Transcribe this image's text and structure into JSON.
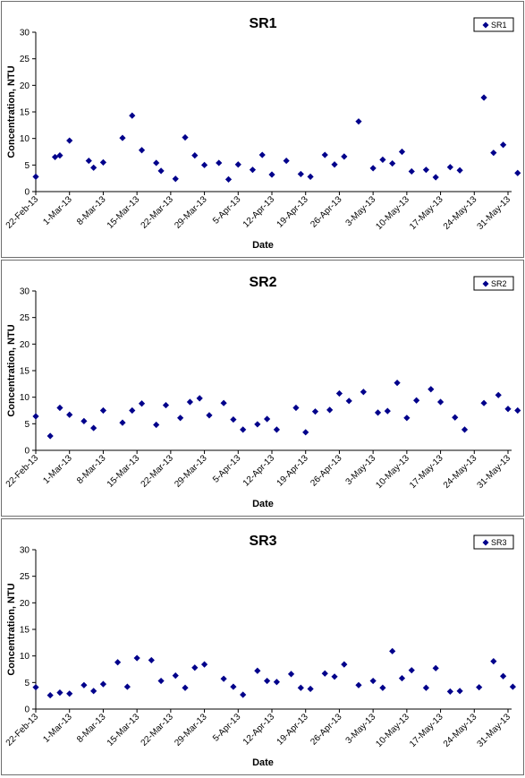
{
  "chart_data": [
    {
      "type": "scatter",
      "title": "SR1",
      "xlabel": "Date",
      "ylabel": "Concentration, NTU",
      "ylim": [
        0,
        30
      ],
      "yticks": [
        0,
        5,
        10,
        15,
        20,
        25,
        30
      ],
      "xticks": [
        "22-Feb-13",
        "1-Mar-13",
        "8-Mar-13",
        "15-Mar-13",
        "22-Mar-13",
        "29-Mar-13",
        "5-Apr-13",
        "12-Apr-13",
        "19-Apr-13",
        "26-Apr-13",
        "3-May-13",
        "10-May-13",
        "17-May-13",
        "24-May-13",
        "31-May-13"
      ],
      "xlim": [
        "2013-02-22",
        "2013-05-31"
      ],
      "grid": false,
      "legend_position": "top-right",
      "marker_color": "#00008B",
      "series": [
        {
          "name": "SR1",
          "points": [
            [
              "2013-02-22",
              2.8
            ],
            [
              "2013-02-26",
              6.5
            ],
            [
              "2013-02-27",
              6.8
            ],
            [
              "2013-03-01",
              9.6
            ],
            [
              "2013-03-05",
              5.8
            ],
            [
              "2013-03-06",
              4.5
            ],
            [
              "2013-03-08",
              5.5
            ],
            [
              "2013-03-12",
              10.1
            ],
            [
              "2013-03-14",
              14.3
            ],
            [
              "2013-03-16",
              7.8
            ],
            [
              "2013-03-19",
              5.4
            ],
            [
              "2013-03-20",
              3.9
            ],
            [
              "2013-03-23",
              2.4
            ],
            [
              "2013-03-25",
              10.2
            ],
            [
              "2013-03-27",
              6.8
            ],
            [
              "2013-03-29",
              5.0
            ],
            [
              "2013-04-01",
              5.4
            ],
            [
              "2013-04-03",
              2.3
            ],
            [
              "2013-04-05",
              5.1
            ],
            [
              "2013-04-08",
              4.1
            ],
            [
              "2013-04-10",
              6.9
            ],
            [
              "2013-04-12",
              3.2
            ],
            [
              "2013-04-15",
              5.8
            ],
            [
              "2013-04-18",
              3.3
            ],
            [
              "2013-04-20",
              2.8
            ],
            [
              "2013-04-23",
              6.9
            ],
            [
              "2013-04-25",
              5.1
            ],
            [
              "2013-04-27",
              6.6
            ],
            [
              "2013-04-30",
              13.2
            ],
            [
              "2013-05-03",
              4.4
            ],
            [
              "2013-05-05",
              6.0
            ],
            [
              "2013-05-07",
              5.3
            ],
            [
              "2013-05-09",
              7.5
            ],
            [
              "2013-05-11",
              3.8
            ],
            [
              "2013-05-14",
              4.1
            ],
            [
              "2013-05-16",
              2.7
            ],
            [
              "2013-05-19",
              4.6
            ],
            [
              "2013-05-21",
              4.0
            ],
            [
              "2013-05-26",
              17.7
            ],
            [
              "2013-05-28",
              7.3
            ],
            [
              "2013-05-30",
              8.8
            ],
            [
              "2013-06-02",
              3.5
            ]
          ]
        }
      ]
    },
    {
      "type": "scatter",
      "title": "SR2",
      "xlabel": "Date",
      "ylabel": "Concentration, NTU",
      "ylim": [
        0,
        30
      ],
      "yticks": [
        0,
        5,
        10,
        15,
        20,
        25,
        30
      ],
      "xticks": [
        "22-Feb-13",
        "1-Mar-13",
        "8-Mar-13",
        "15-Mar-13",
        "22-Mar-13",
        "29-Mar-13",
        "5-Apr-13",
        "12-Apr-13",
        "19-Apr-13",
        "26-Apr-13",
        "3-May-13",
        "10-May-13",
        "17-May-13",
        "24-May-13",
        "31-May-13"
      ],
      "xlim": [
        "2013-02-22",
        "2013-05-31"
      ],
      "grid": false,
      "legend_position": "top-right",
      "marker_color": "#00008B",
      "series": [
        {
          "name": "SR2",
          "points": [
            [
              "2013-02-22",
              6.4
            ],
            [
              "2013-02-25",
              2.7
            ],
            [
              "2013-02-27",
              8.0
            ],
            [
              "2013-03-01",
              6.7
            ],
            [
              "2013-03-04",
              5.5
            ],
            [
              "2013-03-06",
              4.2
            ],
            [
              "2013-03-08",
              7.5
            ],
            [
              "2013-03-12",
              5.2
            ],
            [
              "2013-03-14",
              7.5
            ],
            [
              "2013-03-16",
              8.8
            ],
            [
              "2013-03-19",
              4.8
            ],
            [
              "2013-03-21",
              8.5
            ],
            [
              "2013-03-24",
              6.1
            ],
            [
              "2013-03-26",
              9.1
            ],
            [
              "2013-03-28",
              9.8
            ],
            [
              "2013-03-30",
              6.6
            ],
            [
              "2013-04-02",
              8.9
            ],
            [
              "2013-04-04",
              5.8
            ],
            [
              "2013-04-06",
              3.9
            ],
            [
              "2013-04-09",
              4.9
            ],
            [
              "2013-04-11",
              5.9
            ],
            [
              "2013-04-13",
              3.9
            ],
            [
              "2013-04-17",
              8.0
            ],
            [
              "2013-04-19",
              3.4
            ],
            [
              "2013-04-21",
              7.3
            ],
            [
              "2013-04-24",
              7.6
            ],
            [
              "2013-04-26",
              10.7
            ],
            [
              "2013-04-28",
              9.3
            ],
            [
              "2013-05-01",
              11.0
            ],
            [
              "2013-05-04",
              7.1
            ],
            [
              "2013-05-06",
              7.4
            ],
            [
              "2013-05-08",
              12.7
            ],
            [
              "2013-05-10",
              6.1
            ],
            [
              "2013-05-12",
              9.4
            ],
            [
              "2013-05-15",
              11.5
            ],
            [
              "2013-05-17",
              9.1
            ],
            [
              "2013-05-20",
              6.2
            ],
            [
              "2013-05-22",
              3.9
            ],
            [
              "2013-05-26",
              8.9
            ],
            [
              "2013-05-29",
              10.4
            ],
            [
              "2013-05-31",
              7.8
            ],
            [
              "2013-06-02",
              7.5
            ]
          ]
        }
      ]
    },
    {
      "type": "scatter",
      "title": "SR3",
      "xlabel": "Date",
      "ylabel": "Concentration, NTU",
      "ylim": [
        0,
        30
      ],
      "yticks": [
        0,
        5,
        10,
        15,
        20,
        25,
        30
      ],
      "xticks": [
        "22-Feb-13",
        "1-Mar-13",
        "8-Mar-13",
        "15-Mar-13",
        "22-Mar-13",
        "29-Mar-13",
        "5-Apr-13",
        "12-Apr-13",
        "19-Apr-13",
        "26-Apr-13",
        "3-May-13",
        "10-May-13",
        "17-May-13",
        "24-May-13",
        "31-May-13"
      ],
      "xlim": [
        "2013-02-22",
        "2013-05-31"
      ],
      "grid": false,
      "legend_position": "top-right",
      "marker_color": "#00008B",
      "series": [
        {
          "name": "SR3",
          "points": [
            [
              "2013-02-22",
              4.1
            ],
            [
              "2013-02-25",
              2.6
            ],
            [
              "2013-02-27",
              3.1
            ],
            [
              "2013-03-01",
              2.9
            ],
            [
              "2013-03-04",
              4.5
            ],
            [
              "2013-03-06",
              3.4
            ],
            [
              "2013-03-08",
              4.7
            ],
            [
              "2013-03-11",
              8.8
            ],
            [
              "2013-03-13",
              4.2
            ],
            [
              "2013-03-15",
              9.6
            ],
            [
              "2013-03-18",
              9.2
            ],
            [
              "2013-03-20",
              5.3
            ],
            [
              "2013-03-23",
              6.3
            ],
            [
              "2013-03-25",
              4.0
            ],
            [
              "2013-03-27",
              7.8
            ],
            [
              "2013-03-29",
              8.4
            ],
            [
              "2013-04-02",
              5.7
            ],
            [
              "2013-04-04",
              4.2
            ],
            [
              "2013-04-06",
              2.7
            ],
            [
              "2013-04-09",
              7.2
            ],
            [
              "2013-04-11",
              5.3
            ],
            [
              "2013-04-13",
              5.1
            ],
            [
              "2013-04-16",
              6.6
            ],
            [
              "2013-04-18",
              4.0
            ],
            [
              "2013-04-20",
              3.8
            ],
            [
              "2013-04-23",
              6.7
            ],
            [
              "2013-04-25",
              6.1
            ],
            [
              "2013-04-27",
              8.4
            ],
            [
              "2013-04-30",
              4.5
            ],
            [
              "2013-05-03",
              5.3
            ],
            [
              "2013-05-05",
              4.0
            ],
            [
              "2013-05-07",
              10.9
            ],
            [
              "2013-05-09",
              5.8
            ],
            [
              "2013-05-11",
              7.3
            ],
            [
              "2013-05-14",
              4.0
            ],
            [
              "2013-05-16",
              7.7
            ],
            [
              "2013-05-19",
              3.3
            ],
            [
              "2013-05-21",
              3.4
            ],
            [
              "2013-05-25",
              4.1
            ],
            [
              "2013-05-28",
              9.0
            ],
            [
              "2013-05-30",
              6.2
            ],
            [
              "2013-06-01",
              4.2
            ]
          ]
        }
      ]
    }
  ]
}
